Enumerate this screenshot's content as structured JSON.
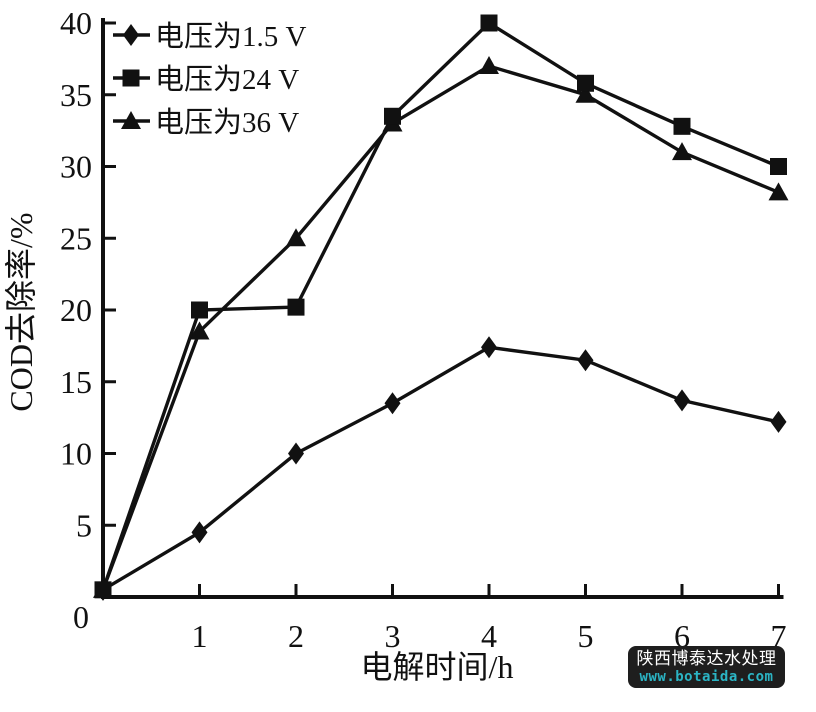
{
  "page": {
    "background": "#ffffff",
    "ink_color": "#111111"
  },
  "chart_data": {
    "type": "line",
    "title": "",
    "xlabel": "电解时间/h",
    "ylabel": "COD去除率/%",
    "xlim": [
      0,
      7
    ],
    "ylim": [
      0,
      40
    ],
    "xtick_step": 1,
    "ytick_step": 5,
    "xticks": [
      1,
      2,
      3,
      4,
      5,
      6,
      7
    ],
    "yticks": [
      0,
      5,
      10,
      15,
      20,
      25,
      30,
      35,
      40
    ],
    "origin_label": "0",
    "grid": false,
    "legend_position": "top-left",
    "x": [
      0,
      1,
      2,
      3,
      4,
      5,
      6,
      7
    ],
    "series": [
      {
        "name": "电压为1.5 V",
        "marker": "diamond",
        "color": "#111111",
        "values": [
          0.5,
          4.5,
          10.0,
          13.5,
          17.4,
          16.5,
          13.7,
          12.2
        ]
      },
      {
        "name": "电压为24 V",
        "marker": "square",
        "color": "#111111",
        "values": [
          0.5,
          20.0,
          20.2,
          33.5,
          40.0,
          35.8,
          32.8,
          30.0
        ]
      },
      {
        "name": "电压为36 V",
        "marker": "triangle",
        "color": "#111111",
        "values": [
          0.5,
          18.5,
          25.0,
          33.0,
          37.0,
          35.0,
          31.0,
          28.2
        ]
      }
    ]
  },
  "watermark": {
    "line1": "陕西博泰达水处理",
    "line2": "www.botaida.com",
    "bg_color": "#1e1e1e",
    "text_color": "#ffffff",
    "link_color": "#2bb4c4"
  }
}
